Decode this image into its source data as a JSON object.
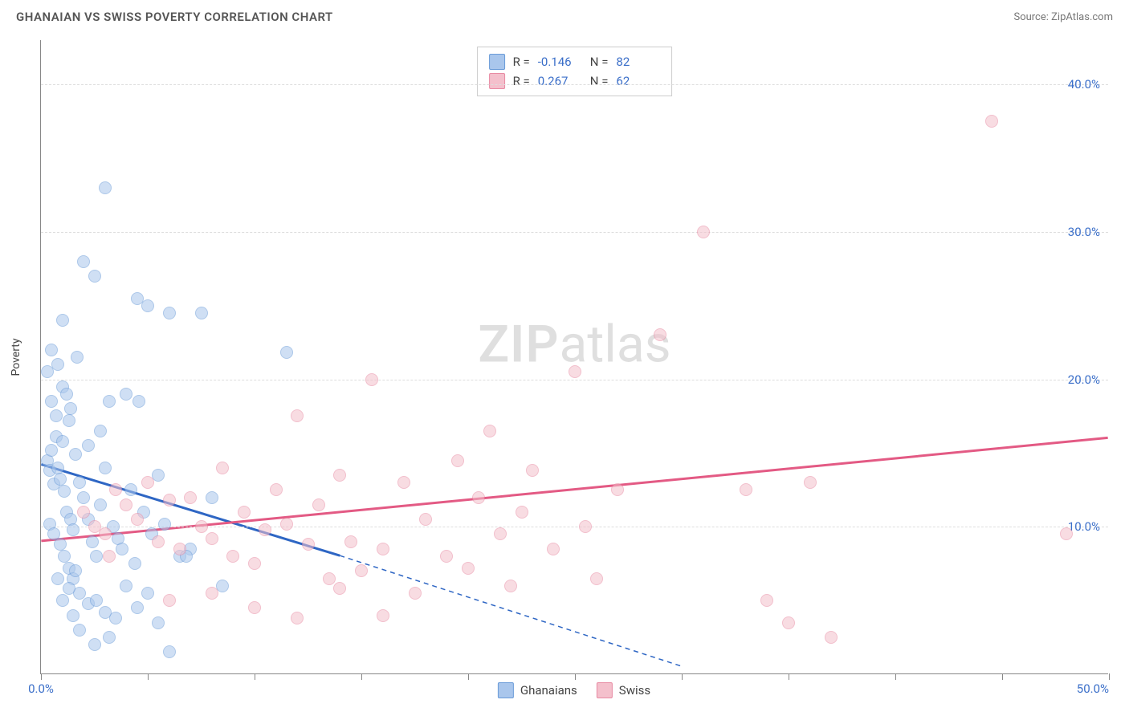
{
  "title": "GHANAIAN VS SWISS POVERTY CORRELATION CHART",
  "source": "Source: ZipAtlas.com",
  "ylabel": "Poverty",
  "watermark_a": "ZIP",
  "watermark_b": "atlas",
  "chart": {
    "type": "scatter",
    "xlim": [
      0,
      50
    ],
    "ylim": [
      0,
      43
    ],
    "x_ticks": [
      0,
      5,
      10,
      15,
      20,
      25,
      30,
      35,
      40,
      45,
      50
    ],
    "x_tick_labels": {
      "0": "0.0%",
      "50": "50.0%"
    },
    "y_ticks": [
      10,
      20,
      30,
      40
    ],
    "y_tick_labels": {
      "10": "10.0%",
      "20": "20.0%",
      "30": "30.0%",
      "40": "40.0%"
    },
    "grid_color": "#dddddd",
    "background_color": "#ffffff",
    "dot_radius": 8,
    "dot_opacity": 0.55,
    "series": [
      {
        "name": "Ghanaians",
        "fill": "#a9c6ec",
        "stroke": "#6a9bd8",
        "line_color": "#2e66c4",
        "trend_solid": {
          "x1": 0,
          "y1": 14.2,
          "x2": 14,
          "y2": 8.0
        },
        "trend_dashed": {
          "x1": 14,
          "y1": 8.0,
          "x2": 30,
          "y2": 0.5
        },
        "stats": {
          "R": "-0.146",
          "N": "82"
        },
        "points": [
          [
            0.3,
            14.5
          ],
          [
            0.4,
            13.8
          ],
          [
            0.5,
            15.2
          ],
          [
            0.6,
            12.9
          ],
          [
            0.7,
            16.1
          ],
          [
            0.8,
            14.0
          ],
          [
            0.9,
            13.2
          ],
          [
            1.0,
            15.8
          ],
          [
            1.1,
            12.4
          ],
          [
            1.2,
            11.0
          ],
          [
            1.3,
            17.2
          ],
          [
            1.4,
            10.5
          ],
          [
            1.5,
            9.8
          ],
          [
            1.6,
            14.9
          ],
          [
            0.5,
            22.0
          ],
          [
            0.8,
            21.0
          ],
          [
            1.0,
            19.5
          ],
          [
            1.2,
            19.0
          ],
          [
            1.4,
            18.0
          ],
          [
            1.7,
            21.5
          ],
          [
            0.4,
            10.2
          ],
          [
            0.6,
            9.5
          ],
          [
            0.9,
            8.8
          ],
          [
            1.1,
            8.0
          ],
          [
            1.3,
            7.2
          ],
          [
            1.5,
            6.5
          ],
          [
            1.8,
            13.0
          ],
          [
            2.0,
            12.0
          ],
          [
            2.2,
            10.5
          ],
          [
            2.4,
            9.0
          ],
          [
            2.6,
            8.0
          ],
          [
            2.8,
            11.5
          ],
          [
            3.0,
            14.0
          ],
          [
            3.2,
            18.5
          ],
          [
            3.4,
            10.0
          ],
          [
            3.6,
            9.2
          ],
          [
            3.8,
            8.5
          ],
          [
            4.0,
            19.0
          ],
          [
            4.2,
            12.5
          ],
          [
            4.4,
            7.5
          ],
          [
            4.6,
            18.5
          ],
          [
            4.8,
            11.0
          ],
          [
            5.0,
            25.0
          ],
          [
            5.2,
            9.5
          ],
          [
            5.5,
            13.5
          ],
          [
            5.8,
            10.2
          ],
          [
            6.0,
            24.5
          ],
          [
            6.5,
            8.0
          ],
          [
            7.0,
            8.5
          ],
          [
            7.5,
            24.5
          ],
          [
            8.0,
            12.0
          ],
          [
            8.5,
            6.0
          ],
          [
            3.0,
            33.0
          ],
          [
            2.0,
            28.0
          ],
          [
            2.5,
            27.0
          ],
          [
            4.5,
            25.5
          ],
          [
            0.3,
            20.5
          ],
          [
            0.5,
            18.5
          ],
          [
            0.7,
            17.5
          ],
          [
            1.0,
            24.0
          ],
          [
            2.2,
            15.5
          ],
          [
            2.8,
            16.5
          ],
          [
            1.8,
            5.5
          ],
          [
            2.2,
            4.8
          ],
          [
            2.6,
            5.0
          ],
          [
            3.0,
            4.2
          ],
          [
            3.5,
            3.8
          ],
          [
            4.0,
            6.0
          ],
          [
            4.5,
            4.5
          ],
          [
            5.0,
            5.5
          ],
          [
            5.5,
            3.5
          ],
          [
            6.0,
            1.5
          ],
          [
            2.5,
            2.0
          ],
          [
            3.2,
            2.5
          ],
          [
            1.5,
            4.0
          ],
          [
            1.8,
            3.0
          ],
          [
            0.8,
            6.5
          ],
          [
            1.0,
            5.0
          ],
          [
            1.3,
            5.8
          ],
          [
            1.6,
            7.0
          ],
          [
            11.5,
            21.8
          ],
          [
            6.8,
            8.0
          ]
        ]
      },
      {
        "name": "Swiss",
        "fill": "#f4c0cc",
        "stroke": "#e88ba3",
        "line_color": "#e35a84",
        "trend_solid": {
          "x1": 0,
          "y1": 9.0,
          "x2": 50,
          "y2": 16.0
        },
        "trend_dashed": null,
        "stats": {
          "R": "0.267",
          "N": "62"
        },
        "points": [
          [
            2.0,
            11.0
          ],
          [
            2.5,
            10.0
          ],
          [
            3.0,
            9.5
          ],
          [
            3.5,
            12.5
          ],
          [
            4.0,
            11.5
          ],
          [
            4.5,
            10.5
          ],
          [
            5.0,
            13.0
          ],
          [
            5.5,
            9.0
          ],
          [
            6.0,
            11.8
          ],
          [
            6.5,
            8.5
          ],
          [
            7.0,
            12.0
          ],
          [
            7.5,
            10.0
          ],
          [
            8.0,
            9.2
          ],
          [
            8.5,
            14.0
          ],
          [
            9.0,
            8.0
          ],
          [
            9.5,
            11.0
          ],
          [
            10.0,
            7.5
          ],
          [
            10.5,
            9.8
          ],
          [
            11.0,
            12.5
          ],
          [
            11.5,
            10.2
          ],
          [
            12.0,
            17.5
          ],
          [
            12.5,
            8.8
          ],
          [
            13.0,
            11.5
          ],
          [
            13.5,
            6.5
          ],
          [
            14.0,
            13.5
          ],
          [
            14.5,
            9.0
          ],
          [
            15.0,
            7.0
          ],
          [
            15.5,
            20.0
          ],
          [
            16.0,
            8.5
          ],
          [
            17.0,
            13.0
          ],
          [
            17.5,
            5.5
          ],
          [
            18.0,
            10.5
          ],
          [
            19.0,
            8.0
          ],
          [
            19.5,
            14.5
          ],
          [
            20.0,
            7.2
          ],
          [
            20.5,
            12.0
          ],
          [
            21.0,
            16.5
          ],
          [
            21.5,
            9.5
          ],
          [
            22.0,
            6.0
          ],
          [
            22.5,
            11.0
          ],
          [
            23.0,
            13.8
          ],
          [
            24.0,
            8.5
          ],
          [
            25.0,
            20.5
          ],
          [
            25.5,
            10.0
          ],
          [
            26.0,
            6.5
          ],
          [
            27.0,
            12.5
          ],
          [
            29.0,
            23.0
          ],
          [
            31.0,
            30.0
          ],
          [
            33.0,
            12.5
          ],
          [
            34.0,
            5.0
          ],
          [
            35.0,
            3.5
          ],
          [
            36.0,
            13.0
          ],
          [
            37.0,
            2.5
          ],
          [
            44.5,
            37.5
          ],
          [
            48.0,
            9.5
          ],
          [
            6.0,
            5.0
          ],
          [
            8.0,
            5.5
          ],
          [
            10.0,
            4.5
          ],
          [
            12.0,
            3.8
          ],
          [
            14.0,
            5.8
          ],
          [
            16.0,
            4.0
          ],
          [
            3.2,
            8.0
          ]
        ]
      }
    ]
  },
  "legend": {
    "items": [
      {
        "label": "Ghanaians",
        "fill": "#a9c6ec",
        "stroke": "#6a9bd8"
      },
      {
        "label": "Swiss",
        "fill": "#f4c0cc",
        "stroke": "#e88ba3"
      }
    ]
  }
}
